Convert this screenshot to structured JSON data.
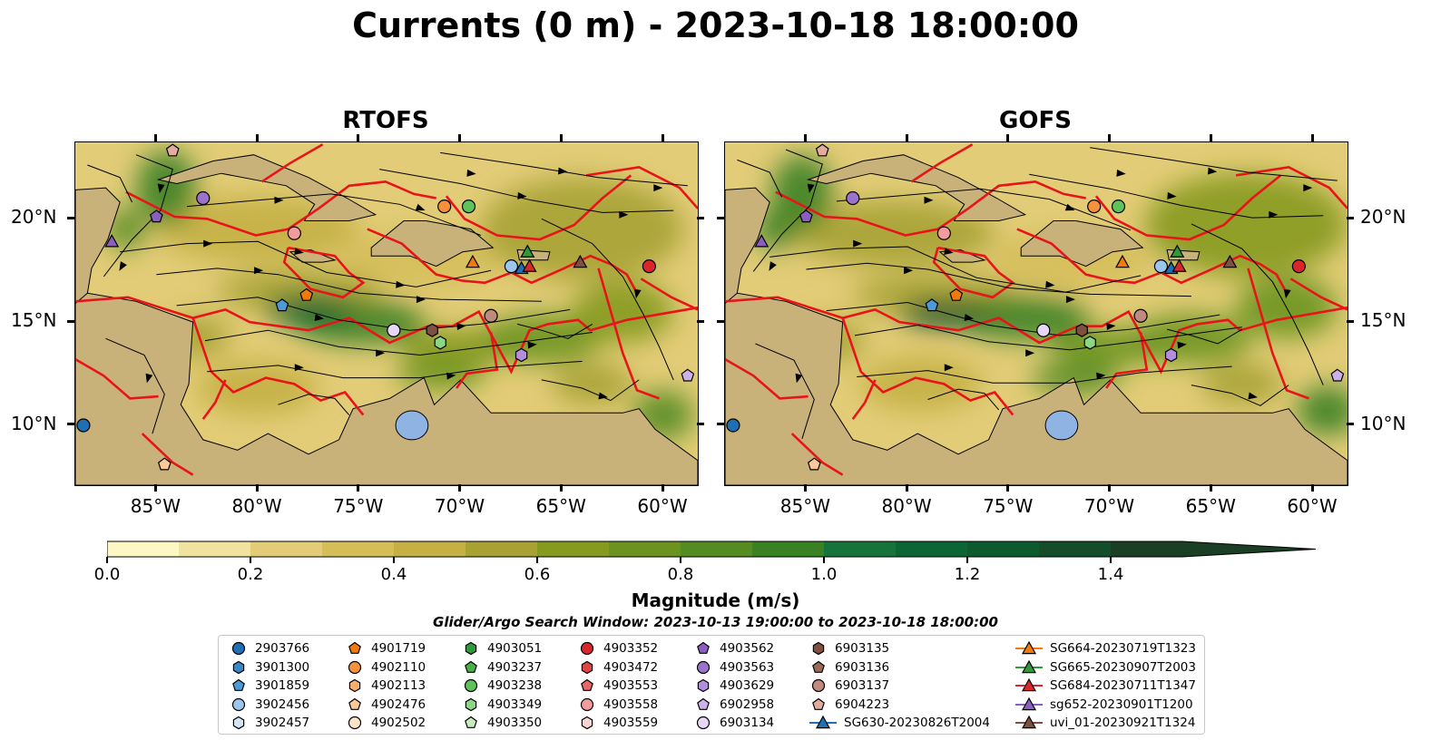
{
  "title": "Currents (0 m) - 2023-10-18 18:00:00",
  "panels": [
    {
      "title": "RTOFS"
    },
    {
      "title": "GOFS"
    }
  ],
  "axes": {
    "lon_ticks": [
      "85°W",
      "80°W",
      "75°W",
      "70°W",
      "65°W",
      "60°W"
    ],
    "lon_values": [
      -85,
      -80,
      -75,
      -70,
      -65,
      -60
    ],
    "lat_ticks": [
      "20°N",
      "15°N",
      "10°N"
    ],
    "lat_values": [
      20,
      15,
      10
    ],
    "xlim": [
      -89,
      -58.3
    ],
    "ylim": [
      7.1,
      23.7
    ]
  },
  "colorbar": {
    "label": "Magnitude (m/s)",
    "tick_labels": [
      "0.0",
      "0.2",
      "0.4",
      "0.6",
      "0.8",
      "1.0",
      "1.2",
      "1.4"
    ],
    "tick_values": [
      0.0,
      0.2,
      0.4,
      0.6,
      0.8,
      1.0,
      1.2,
      1.4
    ],
    "range": [
      0.0,
      1.5
    ],
    "colors": [
      "#fdf7c3",
      "#f0e3a0",
      "#e2cc77",
      "#d5be5a",
      "#c4b044",
      "#a7a233",
      "#869a1f",
      "#6c9320",
      "#548c22",
      "#3a8124",
      "#16733a",
      "#0c6534",
      "#0d5a2e",
      "#154d2b",
      "#1a3f24"
    ]
  },
  "search_window": "Glider/Argo Search Window: 2023-10-13 19:00:00 to 2023-10-18 18:00:00",
  "chart_data": {
    "type": "map",
    "variable": "surface current magnitude (m/s)",
    "map_colors": {
      "land": "#c9b27a",
      "lake": "#8fb4e3",
      "eez_boundary": "#e8141a",
      "streamline": "#000000"
    },
    "legend": [
      {
        "id": "2903766",
        "marker": "circle",
        "color": "#1f6fb4",
        "lon": -88.6,
        "lat": 10.0
      },
      {
        "id": "3901300",
        "marker": "hexagon",
        "color": "#3b86c4",
        "lon": null,
        "lat": null
      },
      {
        "id": "3901859",
        "marker": "pentagon",
        "color": "#4c9ad8",
        "lon": -78.8,
        "lat": 15.8
      },
      {
        "id": "3902456",
        "marker": "circle",
        "color": "#9cc6ec",
        "lon": -67.5,
        "lat": 17.7
      },
      {
        "id": "3902457",
        "marker": "hexagon",
        "color": "#d4e6f6",
        "lon": null,
        "lat": null
      },
      {
        "id": "4901719",
        "marker": "pentagon",
        "color": "#f27a0d",
        "lon": -77.6,
        "lat": 16.3
      },
      {
        "id": "4902110",
        "marker": "circle",
        "color": "#f5913a",
        "lon": -70.8,
        "lat": 20.6
      },
      {
        "id": "4902113",
        "marker": "hexagon",
        "color": "#f8ae6c",
        "lon": null,
        "lat": null
      },
      {
        "id": "4902476",
        "marker": "pentagon",
        "color": "#fbc89a",
        "lon": -84.6,
        "lat": 8.1
      },
      {
        "id": "4902502",
        "marker": "circle",
        "color": "#fde3c8",
        "lon": null,
        "lat": null
      },
      {
        "id": "4903051",
        "marker": "hexagon",
        "color": "#2e9a3a",
        "lon": null,
        "lat": null
      },
      {
        "id": "4903237",
        "marker": "pentagon",
        "color": "#48b04a",
        "lon": null,
        "lat": null
      },
      {
        "id": "4903238",
        "marker": "circle",
        "color": "#5fc35c",
        "lon": -69.6,
        "lat": 20.6
      },
      {
        "id": "4903349",
        "marker": "hexagon",
        "color": "#8dd686",
        "lon": -71.0,
        "lat": 14.0
      },
      {
        "id": "4903350",
        "marker": "pentagon",
        "color": "#c4ecbc",
        "lon": null,
        "lat": null
      },
      {
        "id": "4903352",
        "marker": "circle",
        "color": "#d9262c",
        "lon": -60.7,
        "lat": 17.7
      },
      {
        "id": "4903472",
        "marker": "hexagon",
        "color": "#e04347",
        "lon": null,
        "lat": null
      },
      {
        "id": "4903553",
        "marker": "pentagon",
        "color": "#e9666a",
        "lon": null,
        "lat": null
      },
      {
        "id": "4903558",
        "marker": "circle",
        "color": "#f29c9d",
        "lon": -78.2,
        "lat": 19.3
      },
      {
        "id": "4903559",
        "marker": "hexagon",
        "color": "#fad4d4",
        "lon": null,
        "lat": null
      },
      {
        "id": "4903562",
        "marker": "pentagon",
        "color": "#8a5fbf",
        "lon": -85.0,
        "lat": 20.1
      },
      {
        "id": "4903563",
        "marker": "circle",
        "color": "#9b73cb",
        "lon": -82.7,
        "lat": 21.0
      },
      {
        "id": "4903629",
        "marker": "hexagon",
        "color": "#b28fdc",
        "lon": -67.0,
        "lat": 13.4
      },
      {
        "id": "6902958",
        "marker": "pentagon",
        "color": "#ccb2eb",
        "lon": -58.8,
        "lat": 12.4
      },
      {
        "id": "6903134",
        "marker": "circle",
        "color": "#e6d6f7",
        "lon": -73.3,
        "lat": 14.6
      },
      {
        "id": "6903135",
        "marker": "hexagon",
        "color": "#7f4f3f",
        "lon": -71.4,
        "lat": 14.6
      },
      {
        "id": "6903136",
        "marker": "pentagon",
        "color": "#9a6a5a",
        "lon": null,
        "lat": null
      },
      {
        "id": "6903137",
        "marker": "circle",
        "color": "#c08a7e",
        "lon": -68.5,
        "lat": 15.3
      },
      {
        "id": "6904223",
        "marker": "pentagon",
        "color": "#e4aca0",
        "lon": -84.2,
        "lat": 23.3
      },
      {
        "id": "SG630-20230826T2004",
        "marker": "triangle-line",
        "color": "#1f6fb4",
        "lon": -67.0,
        "lat": 17.6
      },
      {
        "id": "SG664-20230719T1323",
        "marker": "triangle-line",
        "color": "#f27a0d",
        "lon": -69.4,
        "lat": 17.9
      },
      {
        "id": "SG665-20230907T2003",
        "marker": "triangle-line",
        "color": "#2e9a3a",
        "lon": -66.7,
        "lat": 18.4
      },
      {
        "id": "SG684-20230711T1347",
        "marker": "triangle-line",
        "color": "#d9262c",
        "lon": -66.6,
        "lat": 17.7
      },
      {
        "id": "sg652-20230901T1200",
        "marker": "triangle-line",
        "color": "#8a5fbf",
        "lon": -87.2,
        "lat": 18.9
      },
      {
        "id": "uvi_01-20230921T1324",
        "marker": "triangle-line",
        "color": "#7f4f3f",
        "lon": -64.1,
        "lat": 17.9
      }
    ]
  }
}
